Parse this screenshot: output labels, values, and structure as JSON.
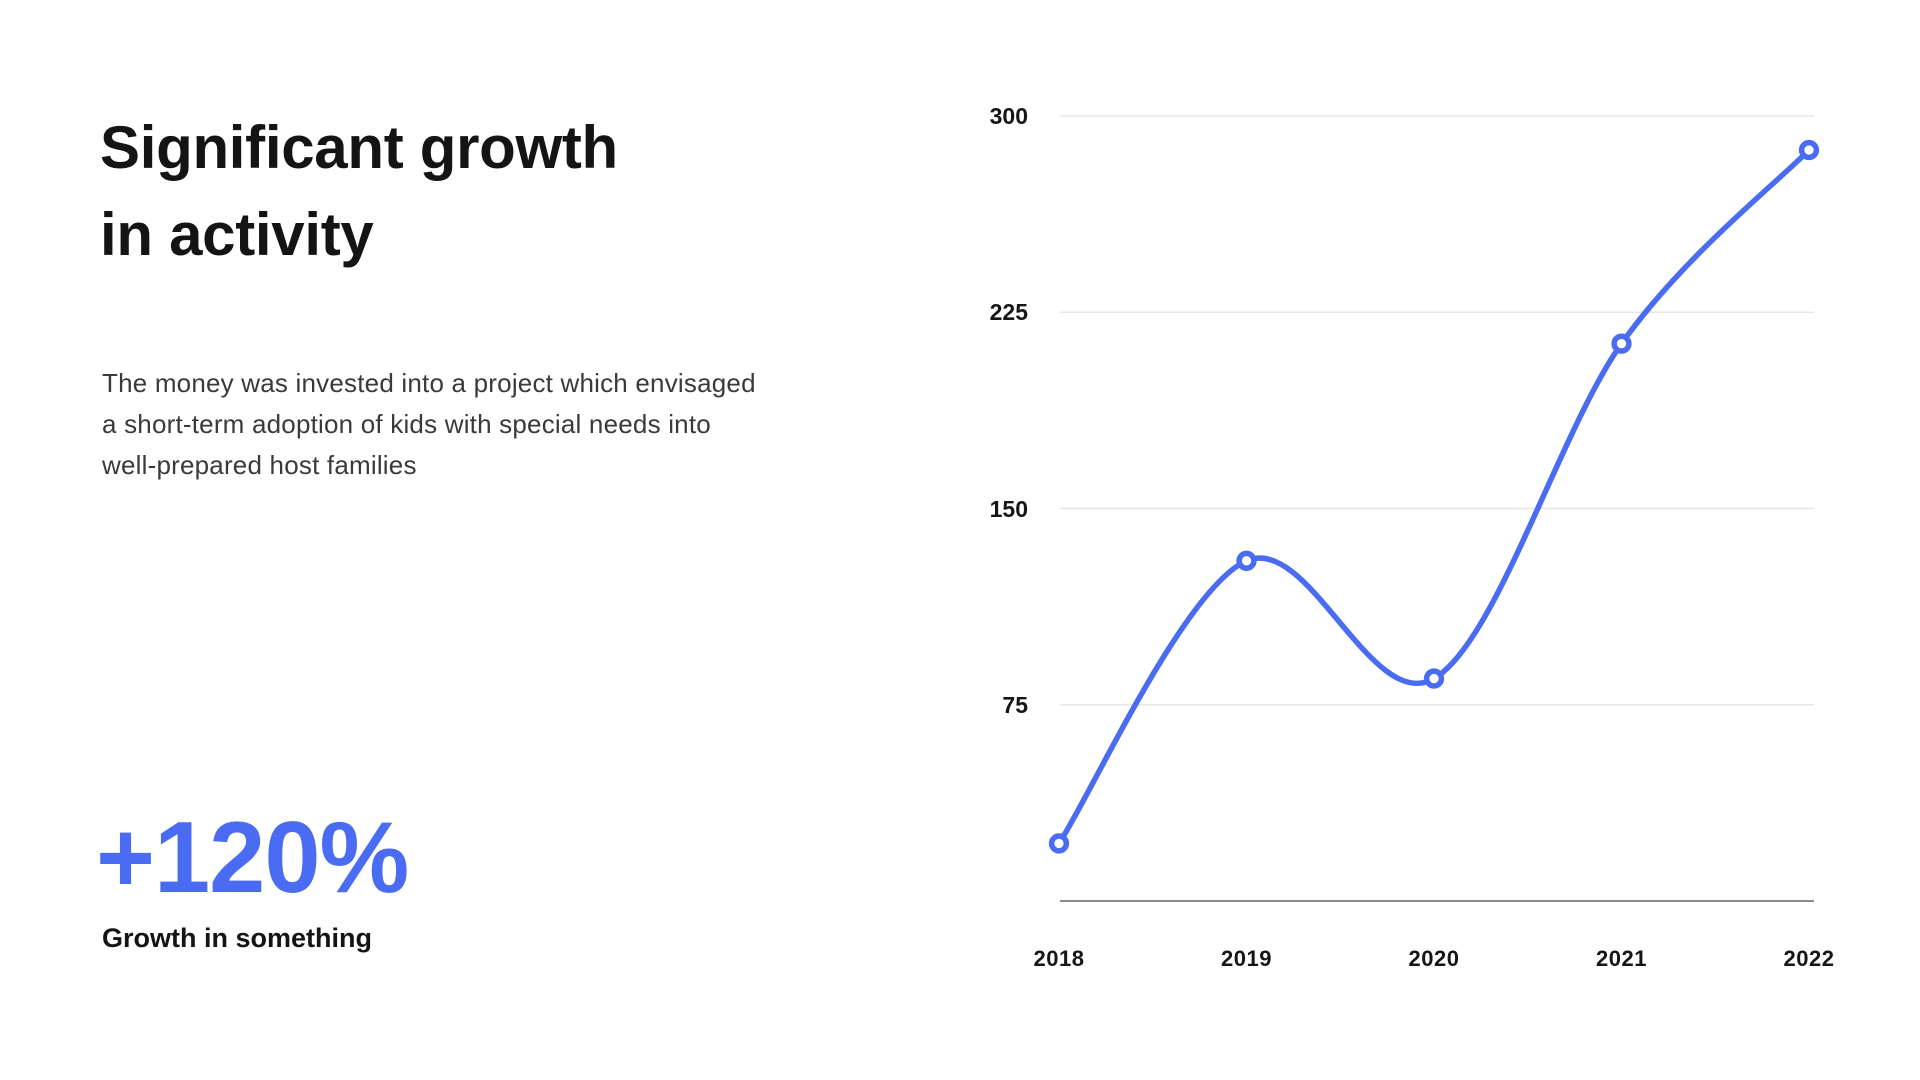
{
  "page": {
    "background": "#ffffff",
    "accent_color": "#4a6cf3"
  },
  "left": {
    "title_lines": [
      "Significant growth",
      "in activity"
    ],
    "description_lines": [
      "The money was invested into a project which envisaged",
      "a short-term adoption of kids with special needs into",
      "well-prepared host families"
    ],
    "stat_value": "+120%",
    "stat_label": "Growth in something"
  },
  "chart_data": {
    "type": "line",
    "x": [
      "2018",
      "2019",
      "2020",
      "2021",
      "2022"
    ],
    "series": [
      {
        "name": "activity",
        "values": [
          22,
          130,
          85,
          213,
          287
        ]
      }
    ],
    "title": "",
    "xlabel": "",
    "ylabel": "",
    "ylim": [
      0,
      300
    ],
    "yticks": [
      75,
      150,
      225,
      300
    ],
    "grid": "horizontal-only",
    "gridline_color": "#e7e7e7",
    "axisline_color": "#8c8c8c",
    "legend": "none",
    "line_color": "#4a6cf3",
    "marker": "open-circle",
    "smooth": true
  }
}
